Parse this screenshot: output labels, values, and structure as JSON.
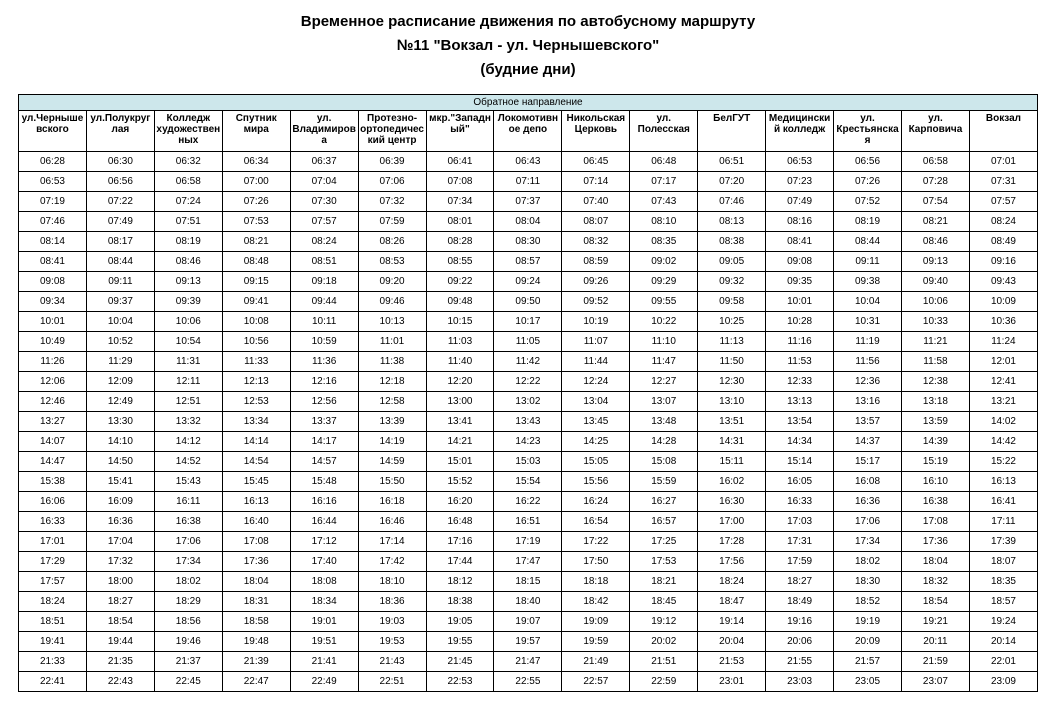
{
  "title_line1": "Временное расписание движения по автобусному маршруту",
  "title_line2": "№11 \"Вокзал - ул. Чернышевского\"",
  "title_line3": "(будние дни)",
  "direction_header": "Обратное направление",
  "direction_header_bg": "#cde7eb",
  "columns": [
    "ул.Чернышевского",
    "ул.Полукруглая",
    "Колледж художественных",
    "Спутник мира",
    "ул. Владимирова",
    "Протезно-ортопедический центр",
    "мкр.\"Западный\"",
    "Локомотивное депо",
    "Никольская Церковь",
    "ул. Полесская",
    "БелГУТ",
    "Медицинский колледж",
    "ул. Крестьянская",
    "ул. Карповича",
    "Вокзал"
  ],
  "rows": [
    [
      "06:28",
      "06:30",
      "06:32",
      "06:34",
      "06:37",
      "06:39",
      "06:41",
      "06:43",
      "06:45",
      "06:48",
      "06:51",
      "06:53",
      "06:56",
      "06:58",
      "07:01"
    ],
    [
      "06:53",
      "06:56",
      "06:58",
      "07:00",
      "07:04",
      "07:06",
      "07:08",
      "07:11",
      "07:14",
      "07:17",
      "07:20",
      "07:23",
      "07:26",
      "07:28",
      "07:31"
    ],
    [
      "07:19",
      "07:22",
      "07:24",
      "07:26",
      "07:30",
      "07:32",
      "07:34",
      "07:37",
      "07:40",
      "07:43",
      "07:46",
      "07:49",
      "07:52",
      "07:54",
      "07:57"
    ],
    [
      "07:46",
      "07:49",
      "07:51",
      "07:53",
      "07:57",
      "07:59",
      "08:01",
      "08:04",
      "08:07",
      "08:10",
      "08:13",
      "08:16",
      "08:19",
      "08:21",
      "08:24"
    ],
    [
      "08:14",
      "08:17",
      "08:19",
      "08:21",
      "08:24",
      "08:26",
      "08:28",
      "08:30",
      "08:32",
      "08:35",
      "08:38",
      "08:41",
      "08:44",
      "08:46",
      "08:49"
    ],
    [
      "08:41",
      "08:44",
      "08:46",
      "08:48",
      "08:51",
      "08:53",
      "08:55",
      "08:57",
      "08:59",
      "09:02",
      "09:05",
      "09:08",
      "09:11",
      "09:13",
      "09:16"
    ],
    [
      "09:08",
      "09:11",
      "09:13",
      "09:15",
      "09:18",
      "09:20",
      "09:22",
      "09:24",
      "09:26",
      "09:29",
      "09:32",
      "09:35",
      "09:38",
      "09:40",
      "09:43"
    ],
    [
      "09:34",
      "09:37",
      "09:39",
      "09:41",
      "09:44",
      "09:46",
      "09:48",
      "09:50",
      "09:52",
      "09:55",
      "09:58",
      "10:01",
      "10:04",
      "10:06",
      "10:09"
    ],
    [
      "10:01",
      "10:04",
      "10:06",
      "10:08",
      "10:11",
      "10:13",
      "10:15",
      "10:17",
      "10:19",
      "10:22",
      "10:25",
      "10:28",
      "10:31",
      "10:33",
      "10:36"
    ],
    [
      "10:49",
      "10:52",
      "10:54",
      "10:56",
      "10:59",
      "11:01",
      "11:03",
      "11:05",
      "11:07",
      "11:10",
      "11:13",
      "11:16",
      "11:19",
      "11:21",
      "11:24"
    ],
    [
      "11:26",
      "11:29",
      "11:31",
      "11:33",
      "11:36",
      "11:38",
      "11:40",
      "11:42",
      "11:44",
      "11:47",
      "11:50",
      "11:53",
      "11:56",
      "11:58",
      "12:01"
    ],
    [
      "12:06",
      "12:09",
      "12:11",
      "12:13",
      "12:16",
      "12:18",
      "12:20",
      "12:22",
      "12:24",
      "12:27",
      "12:30",
      "12:33",
      "12:36",
      "12:38",
      "12:41"
    ],
    [
      "12:46",
      "12:49",
      "12:51",
      "12:53",
      "12:56",
      "12:58",
      "13:00",
      "13:02",
      "13:04",
      "13:07",
      "13:10",
      "13:13",
      "13:16",
      "13:18",
      "13:21"
    ],
    [
      "13:27",
      "13:30",
      "13:32",
      "13:34",
      "13:37",
      "13:39",
      "13:41",
      "13:43",
      "13:45",
      "13:48",
      "13:51",
      "13:54",
      "13:57",
      "13:59",
      "14:02"
    ],
    [
      "14:07",
      "14:10",
      "14:12",
      "14:14",
      "14:17",
      "14:19",
      "14:21",
      "14:23",
      "14:25",
      "14:28",
      "14:31",
      "14:34",
      "14:37",
      "14:39",
      "14:42"
    ],
    [
      "14:47",
      "14:50",
      "14:52",
      "14:54",
      "14:57",
      "14:59",
      "15:01",
      "15:03",
      "15:05",
      "15:08",
      "15:11",
      "15:14",
      "15:17",
      "15:19",
      "15:22"
    ],
    [
      "15:38",
      "15:41",
      "15:43",
      "15:45",
      "15:48",
      "15:50",
      "15:52",
      "15:54",
      "15:56",
      "15:59",
      "16:02",
      "16:05",
      "16:08",
      "16:10",
      "16:13"
    ],
    [
      "16:06",
      "16:09",
      "16:11",
      "16:13",
      "16:16",
      "16:18",
      "16:20",
      "16:22",
      "16:24",
      "16:27",
      "16:30",
      "16:33",
      "16:36",
      "16:38",
      "16:41"
    ],
    [
      "16:33",
      "16:36",
      "16:38",
      "16:40",
      "16:44",
      "16:46",
      "16:48",
      "16:51",
      "16:54",
      "16:57",
      "17:00",
      "17:03",
      "17:06",
      "17:08",
      "17:11"
    ],
    [
      "17:01",
      "17:04",
      "17:06",
      "17:08",
      "17:12",
      "17:14",
      "17:16",
      "17:19",
      "17:22",
      "17:25",
      "17:28",
      "17:31",
      "17:34",
      "17:36",
      "17:39"
    ],
    [
      "17:29",
      "17:32",
      "17:34",
      "17:36",
      "17:40",
      "17:42",
      "17:44",
      "17:47",
      "17:50",
      "17:53",
      "17:56",
      "17:59",
      "18:02",
      "18:04",
      "18:07"
    ],
    [
      "17:57",
      "18:00",
      "18:02",
      "18:04",
      "18:08",
      "18:10",
      "18:12",
      "18:15",
      "18:18",
      "18:21",
      "18:24",
      "18:27",
      "18:30",
      "18:32",
      "18:35"
    ],
    [
      "18:24",
      "18:27",
      "18:29",
      "18:31",
      "18:34",
      "18:36",
      "18:38",
      "18:40",
      "18:42",
      "18:45",
      "18:47",
      "18:49",
      "18:52",
      "18:54",
      "18:57"
    ],
    [
      "18:51",
      "18:54",
      "18:56",
      "18:58",
      "19:01",
      "19:03",
      "19:05",
      "19:07",
      "19:09",
      "19:12",
      "19:14",
      "19:16",
      "19:19",
      "19:21",
      "19:24"
    ],
    [
      "19:41",
      "19:44",
      "19:46",
      "19:48",
      "19:51",
      "19:53",
      "19:55",
      "19:57",
      "19:59",
      "20:02",
      "20:04",
      "20:06",
      "20:09",
      "20:11",
      "20:14"
    ],
    [
      "21:33",
      "21:35",
      "21:37",
      "21:39",
      "21:41",
      "21:43",
      "21:45",
      "21:47",
      "21:49",
      "21:51",
      "21:53",
      "21:55",
      "21:57",
      "21:59",
      "22:01"
    ],
    [
      "22:41",
      "22:43",
      "22:45",
      "22:47",
      "22:49",
      "22:51",
      "22:53",
      "22:55",
      "22:57",
      "22:59",
      "23:01",
      "23:03",
      "23:05",
      "23:07",
      "23:09"
    ]
  ]
}
